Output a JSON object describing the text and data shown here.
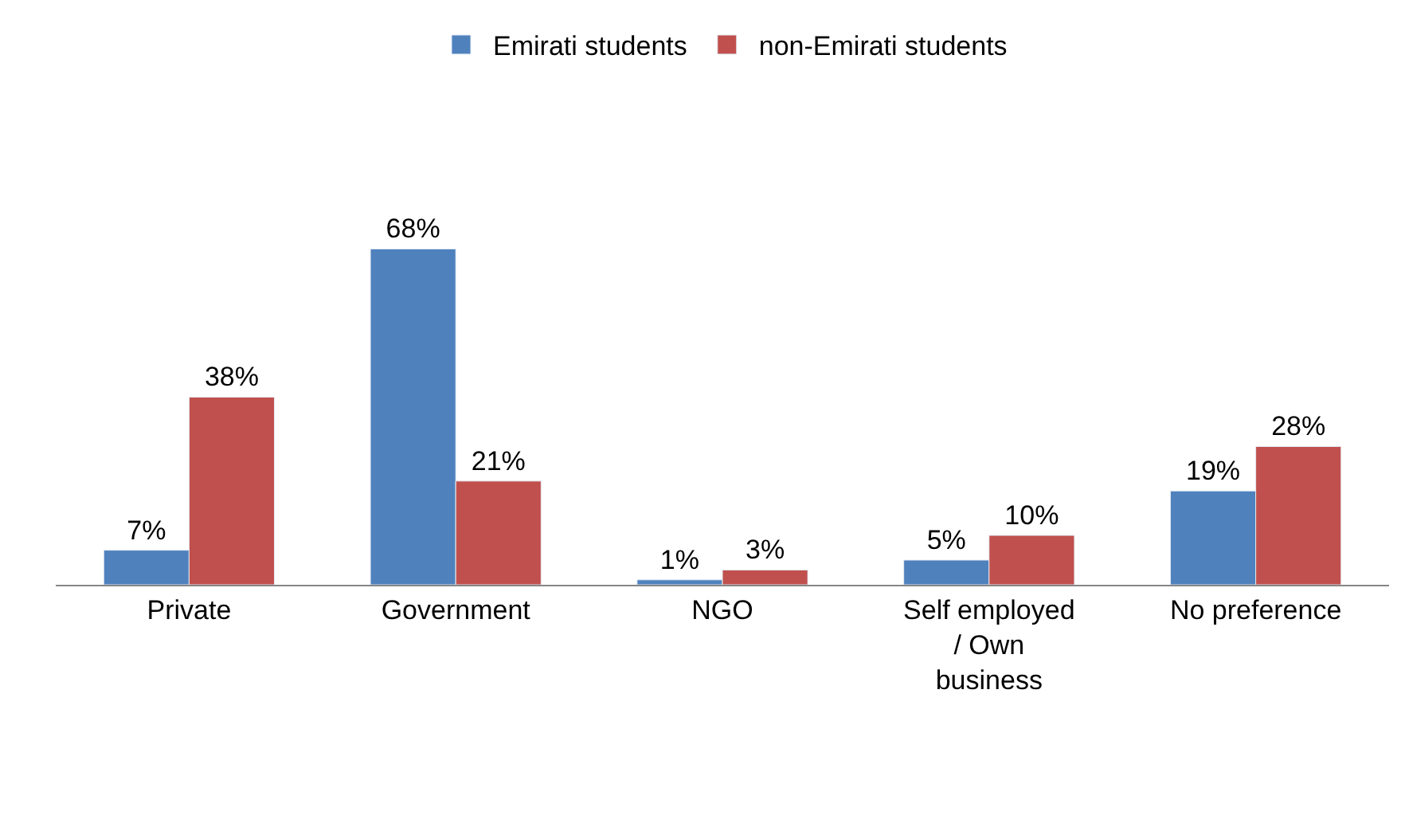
{
  "chart_data": {
    "type": "bar",
    "categories": [
      "Private",
      "Government",
      "NGO",
      "Self employed / Own business",
      "No preference"
    ],
    "series": [
      {
        "name": "Emirati students",
        "color": "#4f81bd",
        "values": [
          7,
          68,
          1,
          5,
          19
        ],
        "value_labels": [
          "7%",
          "68%",
          "1%",
          "5%",
          "19%"
        ]
      },
      {
        "name": "non-Emirati students",
        "color": "#c0504d",
        "values": [
          38,
          21,
          3,
          10,
          28
        ],
        "value_labels": [
          "38%",
          "21%",
          "3%",
          "10%",
          "28%"
        ]
      }
    ],
    "legend": "top"
  }
}
